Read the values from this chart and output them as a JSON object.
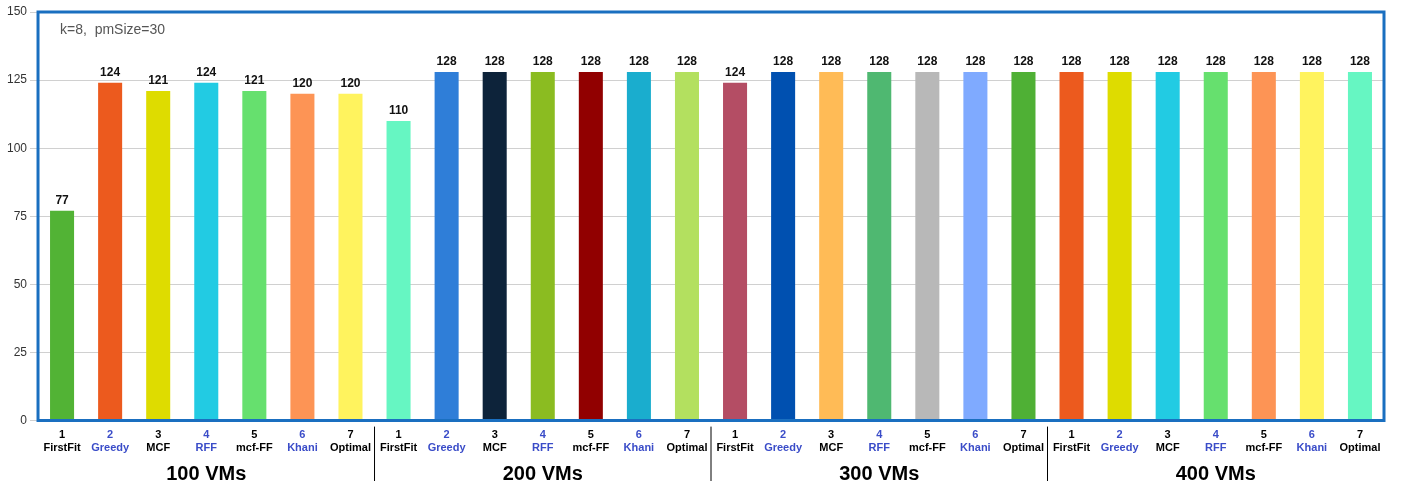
{
  "chart_data": {
    "type": "bar",
    "title": "k=8,  pmSize=30",
    "categories": [
      "1 FirstFit",
      "2 Greedy",
      "3 MCF",
      "4 RFF",
      "5 mcf-FF",
      "6 Khani",
      "7 Optimal",
      "1 FirstFit",
      "2 Greedy",
      "3 MCF",
      "4 RFF",
      "5 mcf-FF",
      "6 Khani",
      "7 Optimal",
      "1 FirstFit",
      "2 Greedy",
      "3 MCF",
      "4 RFF",
      "5 mcf-FF",
      "6 Khani",
      "7 Optimal",
      "1 FirstFit",
      "2 Greedy",
      "3 MCF",
      "4 RFF",
      "5 mcf-FF",
      "6 Khani",
      "7 Optimal"
    ],
    "values": [
      77,
      124,
      121,
      124,
      121,
      120,
      120,
      110,
      128,
      128,
      128,
      128,
      128,
      128,
      124,
      128,
      128,
      128,
      128,
      128,
      128,
      128,
      128,
      128,
      128,
      128,
      128,
      128
    ],
    "colors": [
      "#52b335",
      "#ec5a1e",
      "#dedc00",
      "#22cbe3",
      "#66e06e",
      "#fd9455",
      "#fff35e",
      "#66f6c2",
      "#2f7ed8",
      "#0d233a",
      "#8bbc21",
      "#910000",
      "#1aadce",
      "#b3e05f",
      "#b44d64",
      "#0050b0",
      "#ffbb56",
      "#4fb871",
      "#b8b8b8",
      "#7faaff",
      "#4fb035",
      "#ec5a1e",
      "#dedc00",
      "#22cbe3",
      "#66e06e",
      "#fd9455",
      "#fff35e",
      "#66f6c2"
    ],
    "ylim": [
      0,
      150
    ],
    "yticks": [
      0,
      25,
      50,
      75,
      100,
      125,
      150
    ],
    "grid": "y",
    "data_labels": true,
    "legend": false,
    "annotations": [
      "100 VMs",
      "200 VMs",
      "300 VMs",
      "400 VMs"
    ]
  }
}
